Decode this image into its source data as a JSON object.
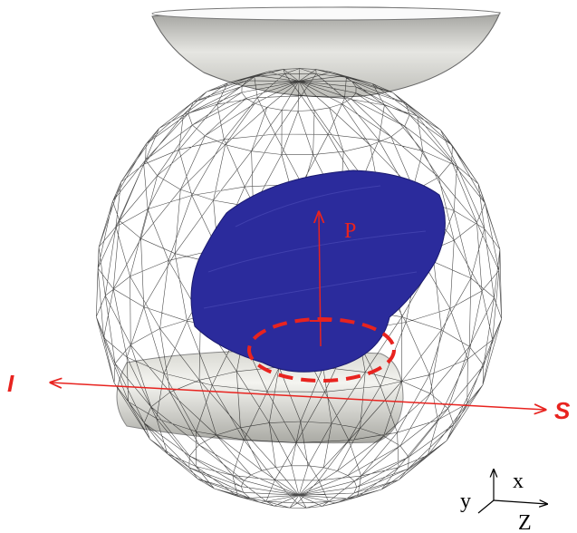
{
  "labels": {
    "pressure": "P",
    "inferior": "I",
    "superior": "S",
    "axis_x": "x",
    "axis_y": "y",
    "axis_z": "Z"
  }
}
